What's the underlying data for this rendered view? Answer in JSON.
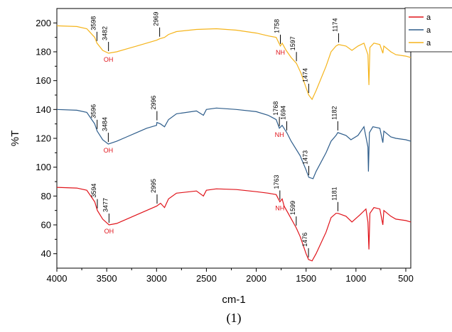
{
  "chart_data": {
    "type": "line",
    "title": "",
    "xlabel": "cm-1",
    "ylabel": "%T",
    "caption": "(1)",
    "xlim": [
      4000,
      450
    ],
    "ylim": [
      30,
      210
    ],
    "x_ticks": [
      4000,
      3500,
      3000,
      2500,
      2000,
      1500,
      1000,
      500
    ],
    "y_ticks": [
      40,
      60,
      80,
      100,
      120,
      140,
      160,
      180,
      200
    ],
    "grid": false,
    "legend_position": "top-right",
    "series": [
      {
        "name": "a",
        "color": "#e0131a",
        "points": [
          [
            4000,
            86
          ],
          [
            3800,
            85.5
          ],
          [
            3700,
            84
          ],
          [
            3620,
            76
          ],
          [
            3594,
            70
          ],
          [
            3540,
            64
          ],
          [
            3477,
            60
          ],
          [
            3400,
            61
          ],
          [
            3300,
            64
          ],
          [
            3200,
            67
          ],
          [
            3100,
            70
          ],
          [
            3000,
            73
          ],
          [
            2960,
            75
          ],
          [
            2920,
            72
          ],
          [
            2880,
            78
          ],
          [
            2800,
            82
          ],
          [
            2600,
            83.5
          ],
          [
            2530,
            80
          ],
          [
            2500,
            84
          ],
          [
            2400,
            85
          ],
          [
            2200,
            84.5
          ],
          [
            2000,
            83
          ],
          [
            1880,
            82
          ],
          [
            1800,
            81
          ],
          [
            1763,
            76
          ],
          [
            1740,
            78
          ],
          [
            1720,
            73
          ],
          [
            1680,
            68
          ],
          [
            1599,
            58
          ],
          [
            1560,
            52
          ],
          [
            1500,
            40
          ],
          [
            1476,
            36
          ],
          [
            1440,
            35
          ],
          [
            1400,
            40
          ],
          [
            1300,
            55
          ],
          [
            1250,
            65
          ],
          [
            1200,
            68
          ],
          [
            1181,
            68
          ],
          [
            1100,
            66
          ],
          [
            1040,
            62
          ],
          [
            960,
            67
          ],
          [
            900,
            71
          ],
          [
            880,
            62
          ],
          [
            870,
            43
          ],
          [
            860,
            68
          ],
          [
            820,
            72
          ],
          [
            760,
            71
          ],
          [
            730,
            60
          ],
          [
            720,
            70
          ],
          [
            650,
            66
          ],
          [
            600,
            64
          ],
          [
            500,
            63
          ],
          [
            450,
            62
          ]
        ],
        "annotations": [
          {
            "x": 3594,
            "label": "3594"
          },
          {
            "x": 3477,
            "label": "3477"
          },
          {
            "x": 2995,
            "label": "2995"
          },
          {
            "x": 1763,
            "label": "1763"
          },
          {
            "x": 1599,
            "label": "1599"
          },
          {
            "x": 1476,
            "label": "1476"
          },
          {
            "x": 1181,
            "label": "1181"
          }
        ],
        "group_labels": [
          {
            "x": 3477,
            "label": "OH"
          },
          {
            "x": 1763,
            "label": "NH"
          }
        ]
      },
      {
        "name": "a",
        "color": "#2e5d8b",
        "points": [
          [
            4000,
            140
          ],
          [
            3800,
            139.5
          ],
          [
            3700,
            138
          ],
          [
            3620,
            130
          ],
          [
            3596,
            125
          ],
          [
            3540,
            119
          ],
          [
            3484,
            116
          ],
          [
            3400,
            118
          ],
          [
            3300,
            121
          ],
          [
            3200,
            124
          ],
          [
            3100,
            127
          ],
          [
            3000,
            129
          ],
          [
            2996,
            131
          ],
          [
            2960,
            130
          ],
          [
            2920,
            128
          ],
          [
            2880,
            133
          ],
          [
            2800,
            137
          ],
          [
            2600,
            139
          ],
          [
            2530,
            136
          ],
          [
            2500,
            140
          ],
          [
            2400,
            141
          ],
          [
            2200,
            140
          ],
          [
            2000,
            138.5
          ],
          [
            1880,
            136
          ],
          [
            1800,
            133
          ],
          [
            1768,
            127
          ],
          [
            1740,
            129
          ],
          [
            1694,
            124
          ],
          [
            1650,
            118
          ],
          [
            1560,
            108
          ],
          [
            1500,
            98
          ],
          [
            1473,
            93
          ],
          [
            1430,
            92
          ],
          [
            1400,
            97
          ],
          [
            1300,
            110
          ],
          [
            1250,
            118
          ],
          [
            1200,
            122
          ],
          [
            1182,
            124
          ],
          [
            1100,
            122
          ],
          [
            1050,
            119
          ],
          [
            980,
            122
          ],
          [
            920,
            128
          ],
          [
            880,
            114
          ],
          [
            875,
            97
          ],
          [
            865,
            124
          ],
          [
            830,
            128
          ],
          [
            760,
            127
          ],
          [
            730,
            117
          ],
          [
            720,
            125
          ],
          [
            650,
            121
          ],
          [
            600,
            120
          ],
          [
            500,
            119
          ],
          [
            450,
            118
          ]
        ],
        "annotations": [
          {
            "x": 3596,
            "label": "3596"
          },
          {
            "x": 3484,
            "label": "3484"
          },
          {
            "x": 2996,
            "label": "2996"
          },
          {
            "x": 1768,
            "label": "1768"
          },
          {
            "x": 1694,
            "label": "1694"
          },
          {
            "x": 1473,
            "label": "1473"
          },
          {
            "x": 1182,
            "label": "1182"
          }
        ],
        "group_labels": [
          {
            "x": 3484,
            "label": "OH"
          },
          {
            "x": 1768,
            "label": "NH"
          }
        ]
      },
      {
        "name": "a",
        "color": "#f5b41b",
        "points": [
          [
            4000,
            198
          ],
          [
            3800,
            197.5
          ],
          [
            3700,
            196
          ],
          [
            3620,
            190
          ],
          [
            3598,
            186
          ],
          [
            3540,
            181
          ],
          [
            3482,
            179
          ],
          [
            3400,
            180
          ],
          [
            3300,
            182
          ],
          [
            3200,
            184
          ],
          [
            3100,
            186
          ],
          [
            3000,
            188
          ],
          [
            2969,
            189
          ],
          [
            2920,
            190
          ],
          [
            2880,
            192
          ],
          [
            2800,
            194
          ],
          [
            2600,
            195.5
          ],
          [
            2400,
            196
          ],
          [
            2200,
            195
          ],
          [
            2000,
            193
          ],
          [
            1880,
            191
          ],
          [
            1800,
            190
          ],
          [
            1758,
            184
          ],
          [
            1740,
            186
          ],
          [
            1700,
            181
          ],
          [
            1650,
            176
          ],
          [
            1597,
            172
          ],
          [
            1550,
            165
          ],
          [
            1500,
            155
          ],
          [
            1474,
            150
          ],
          [
            1440,
            147
          ],
          [
            1400,
            153
          ],
          [
            1300,
            170
          ],
          [
            1250,
            180
          ],
          [
            1200,
            184
          ],
          [
            1174,
            185
          ],
          [
            1100,
            184
          ],
          [
            1040,
            181
          ],
          [
            980,
            184
          ],
          [
            920,
            186
          ],
          [
            880,
            178
          ],
          [
            870,
            157
          ],
          [
            860,
            183
          ],
          [
            820,
            186
          ],
          [
            760,
            185
          ],
          [
            730,
            179
          ],
          [
            720,
            184
          ],
          [
            650,
            180
          ],
          [
            600,
            178
          ],
          [
            500,
            177
          ],
          [
            450,
            176
          ]
        ],
        "annotations": [
          {
            "x": 3598,
            "label": "3598"
          },
          {
            "x": 3482,
            "label": "3482"
          },
          {
            "x": 2969,
            "label": "2969"
          },
          {
            "x": 1758,
            "label": "1758"
          },
          {
            "x": 1597,
            "label": "1597"
          },
          {
            "x": 1474,
            "label": "1474"
          },
          {
            "x": 1174,
            "label": "1174"
          }
        ],
        "group_labels": [
          {
            "x": 3482,
            "label": "OH"
          },
          {
            "x": 1758,
            "label": "NH"
          }
        ]
      }
    ]
  }
}
